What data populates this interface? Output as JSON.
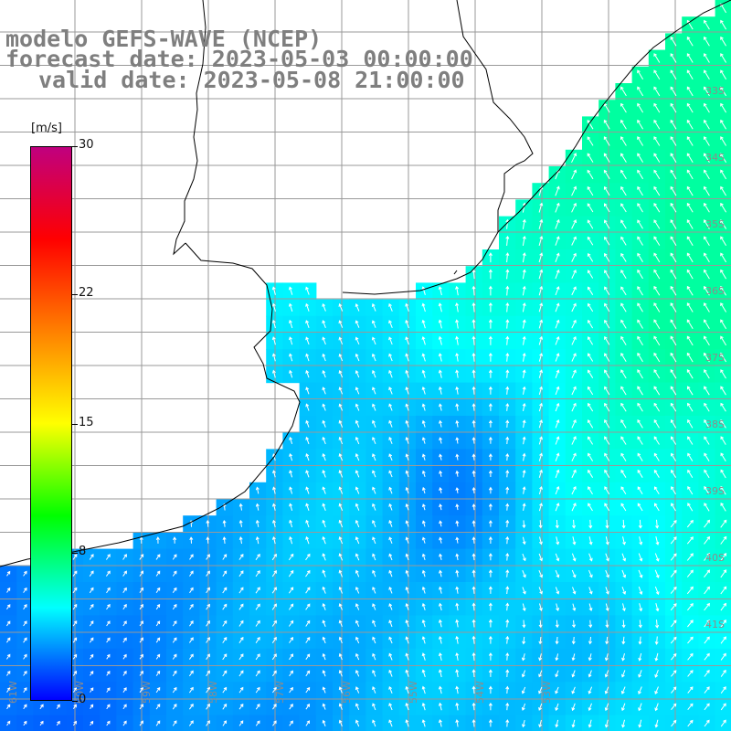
{
  "title": {
    "model": "modelo GEFS-WAVE (NCEP)",
    "forecast": "forecast date: 2023-05-03 00:00:00",
    "valid": "valid date: 2023-05-08 21:00:00"
  },
  "colorbar": {
    "unit": "[m/s]",
    "ticks": [
      "30",
      "22",
      "15",
      "8",
      "0"
    ],
    "tick_values": [
      30,
      22,
      15,
      8,
      0
    ],
    "range": [
      0,
      30
    ],
    "colors": [
      "#0000ff",
      "#00ffff",
      "#00ff00",
      "#ffff00",
      "#ff8000",
      "#ff0000",
      "#c0007f"
    ]
  },
  "map": {
    "lat_labels": [
      "33S",
      "34S",
      "35S",
      "36S",
      "37S",
      "38S",
      "39S",
      "40S",
      "41S"
    ],
    "lon_labels": [
      "61W",
      "60W",
      "59W",
      "58W",
      "57W",
      "56W",
      "55W",
      "54W",
      "53W"
    ],
    "land_color": "#ffffff",
    "grid_color": "#999999",
    "coast_color": "#000000"
  }
}
